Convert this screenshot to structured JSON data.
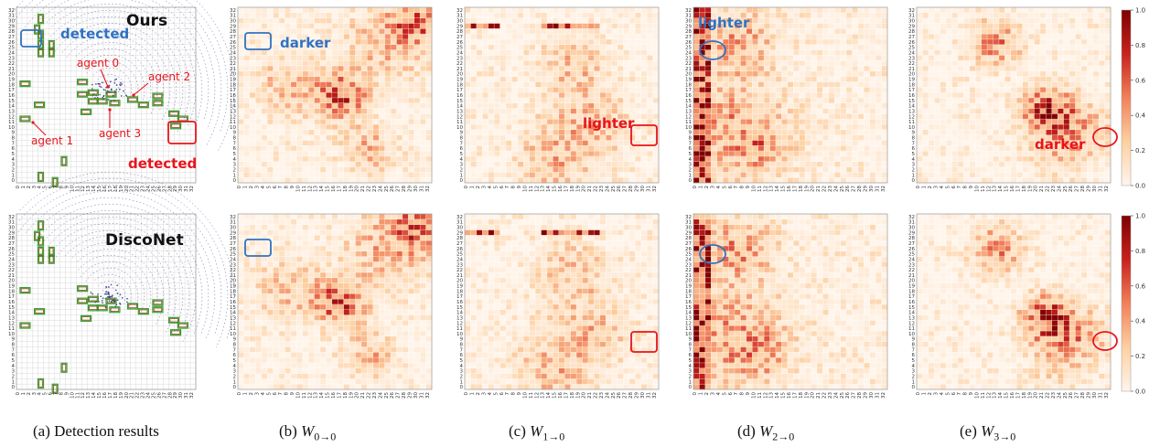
{
  "figure": {
    "grid_size": 33,
    "tick_labels": [
      "0",
      "1",
      "2",
      "3",
      "4",
      "5",
      "6",
      "7",
      "8",
      "9",
      "10",
      "11",
      "12",
      "13",
      "14",
      "15",
      "16",
      "17",
      "18",
      "19",
      "20",
      "21",
      "22",
      "23",
      "24",
      "25",
      "26",
      "27",
      "28",
      "29",
      "30",
      "31",
      "32"
    ],
    "colorbar_ticks": [
      "0.0",
      "0.2",
      "0.4",
      "0.6",
      "0.8",
      "1.0"
    ],
    "colors": {
      "heat_low": "#fff5eb",
      "heat_high": "#7f0000",
      "highlight_red": "#e8141b",
      "highlight_blue": "#2f72c4",
      "box_green": "#2ca02c",
      "box_brown": "#8b4513",
      "lidar": "#3b3b8f"
    }
  },
  "detection_panels": [
    {
      "title": "Ours",
      "labels": {
        "detected_blue": "detected",
        "detected_red": "detected",
        "agent0": "agent 0",
        "agent1": "agent 1",
        "agent2": "agent 2",
        "agent3": "agent 3"
      }
    },
    {
      "title": "DiscoNet"
    }
  ],
  "heatmap_annotations": {
    "b_top": "darker",
    "c_top": "lighter",
    "d_top": "lighter",
    "e_top": "darker"
  },
  "captions": [
    {
      "prefix": "(a) Detection results",
      "math": "",
      "sub": ""
    },
    {
      "prefix": "(b) ",
      "math": "W",
      "sub": "0→0"
    },
    {
      "prefix": "(c) ",
      "math": "W",
      "sub": "1→0"
    },
    {
      "prefix": "(d) ",
      "math": "W",
      "sub": "2→0"
    },
    {
      "prefix": "(e) ",
      "math": "W",
      "sub": "3→0"
    }
  ]
}
